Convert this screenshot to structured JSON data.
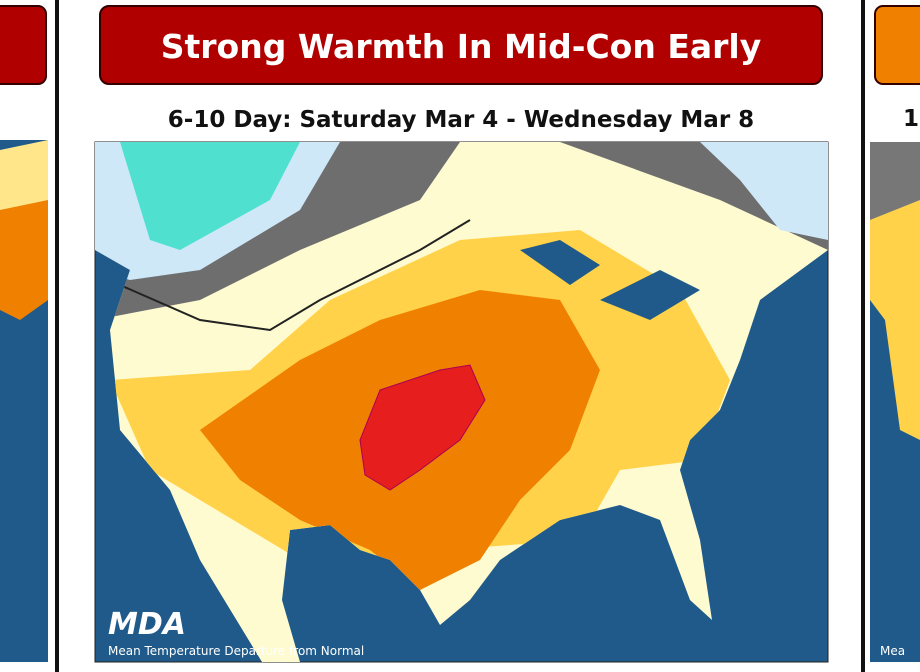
{
  "panel": {
    "title": "Strong Warmth In Mid-Con Early",
    "subtitle": "6-10 Day: Saturday Mar 4 - Wednesday Mar 8",
    "logo": "MDA",
    "caption": "Mean Temperature Departure from Normal"
  },
  "right_panel": {
    "subtitle": "1",
    "caption": "Mea"
  }
}
